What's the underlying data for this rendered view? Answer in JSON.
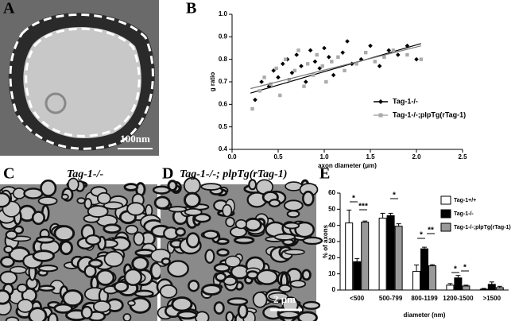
{
  "panels": {
    "A": {
      "label": "A",
      "scale_bar": "100nm"
    },
    "B": {
      "label": "B"
    },
    "C": {
      "label": "C",
      "title": "Tag-1-/-"
    },
    "D": {
      "label": "D",
      "title": "Tag-1-/-; plpTg(rTag-1)",
      "scale_bar": "2 μm"
    },
    "E": {
      "label": "E"
    }
  },
  "chart_data": [
    {
      "type": "scatter",
      "xlabel": "axon diameter (μm)",
      "ylabel": "g ratio",
      "xlim": [
        0,
        2.5
      ],
      "ylim": [
        0.4,
        1.0
      ],
      "xticks": [
        {
          "value": 0,
          "label": "0.0"
        },
        0.5,
        {
          "value": 1,
          "label": "1.0"
        },
        1.5,
        {
          "value": 2,
          "label": "2.0"
        },
        2.5
      ],
      "yticks": [
        0.4,
        0.5,
        0.6,
        0.7,
        0.8,
        0.9,
        {
          "value": 1,
          "label": "1.0"
        }
      ],
      "legend": "lower right",
      "series": [
        {
          "name": "Tag-1-/-",
          "color": "#000000",
          "marker": "diamond",
          "x": [
            0.25,
            0.32,
            0.4,
            0.45,
            0.5,
            0.55,
            0.6,
            0.65,
            0.7,
            0.75,
            0.8,
            0.85,
            0.9,
            0.95,
            1.0,
            1.05,
            1.1,
            1.2,
            1.25,
            1.3,
            1.4,
            1.5,
            1.6,
            1.7,
            1.8,
            1.9,
            2.0
          ],
          "values": [
            0.62,
            0.7,
            0.68,
            0.75,
            0.72,
            0.78,
            0.8,
            0.74,
            0.82,
            0.77,
            0.7,
            0.84,
            0.79,
            0.76,
            0.85,
            0.81,
            0.73,
            0.83,
            0.88,
            0.78,
            0.8,
            0.86,
            0.77,
            0.84,
            0.82,
            0.86,
            0.8
          ],
          "fit": {
            "x": [
              0.2,
              2.05
            ],
            "y": [
              0.65,
              0.87
            ]
          }
        },
        {
          "name": "Tag-1-/-;plpTg(rTag-1)",
          "color": "#aaaaaa",
          "marker": "square",
          "x": [
            0.22,
            0.3,
            0.35,
            0.42,
            0.48,
            0.52,
            0.58,
            0.62,
            0.68,
            0.72,
            0.78,
            0.82,
            0.88,
            0.92,
            0.98,
            1.02,
            1.08,
            1.15,
            1.22,
            1.35,
            1.45,
            1.55,
            1.65,
            1.75,
            1.9,
            2.05
          ],
          "values": [
            0.58,
            0.66,
            0.72,
            0.69,
            0.76,
            0.64,
            0.8,
            0.71,
            0.75,
            0.84,
            0.68,
            0.78,
            0.73,
            0.82,
            0.77,
            0.7,
            0.79,
            0.81,
            0.75,
            0.78,
            0.83,
            0.79,
            0.81,
            0.84,
            0.82,
            0.8
          ],
          "fit": {
            "x": [
              0.2,
              2.05
            ],
            "y": [
              0.67,
              0.86
            ]
          }
        }
      ]
    },
    {
      "type": "bar",
      "xlabel": "diameter (nm)",
      "ylabel": "% of axons",
      "categories": [
        "<500",
        "500-799",
        "800-1199",
        "1200-1500",
        ">1500"
      ],
      "ylim": [
        0,
        60
      ],
      "yticks": [
        0,
        10,
        20,
        30,
        40,
        50,
        60
      ],
      "legend": "upper right",
      "series": [
        {
          "name": "Tag-1+/+",
          "color": "#ffffff",
          "values": [
            41.5,
            44.5,
            11.5,
            3,
            0.5
          ],
          "errors": [
            8,
            3,
            4,
            1,
            0.5
          ]
        },
        {
          "name": "Tag-1-/-",
          "color": "#000000",
          "values": [
            17.5,
            46,
            25.5,
            7.5,
            3.5
          ],
          "errors": [
            2,
            1.5,
            1,
            1.5,
            1.5
          ]
        },
        {
          "name": "Tag-1-/-;plpTg(rTag-1)",
          "color": "#999999",
          "values": [
            42,
            39.5,
            15,
            2.5,
            1.5
          ],
          "errors": [
            0.7,
            1.5,
            0.7,
            0.5,
            0.8
          ]
        }
      ],
      "annotations": [
        "*",
        "***",
        "*",
        "*",
        "**",
        "*",
        "*"
      ]
    }
  ]
}
